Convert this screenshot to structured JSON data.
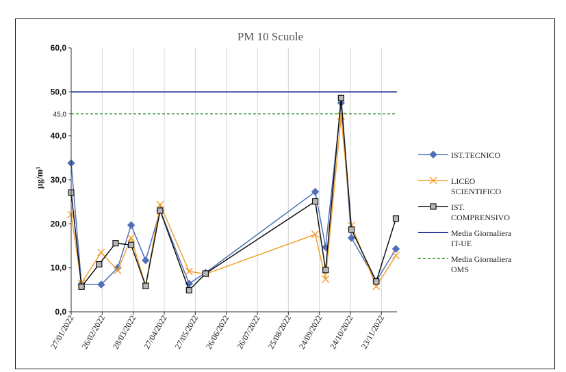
{
  "chart_data": {
    "type": "line",
    "title": "PM 10 Scuole",
    "ylabel": "µg/m³",
    "ylim": [
      0,
      60
    ],
    "yticks": [
      "0,0",
      "10,0",
      "20,0",
      "30,0",
      "40,0",
      "45,0",
      "50,0",
      "60,0"
    ],
    "xlim": [
      "2022-01-27",
      "2022-12-08"
    ],
    "xticks": [
      "27/01/2022",
      "26/02/2022",
      "28/03/2022",
      "27/04/2022",
      "27/05/2022",
      "26/06/2022",
      "26/07/2022",
      "25/08/2022",
      "24/09/2022",
      "24/10/2022",
      "23/11/2022"
    ],
    "grid": "vertical",
    "legend_position": "right",
    "series": [
      {
        "name": "IST.TECNICO",
        "color": "#4f6fb8",
        "marker": "diamond",
        "points": [
          [
            "2022-01-27",
            33.8
          ],
          [
            "2022-02-06",
            6.3
          ],
          [
            "2022-02-25",
            6.2
          ],
          [
            "2022-03-13",
            10.0
          ],
          [
            "2022-03-26",
            19.7
          ],
          [
            "2022-04-09",
            11.7
          ],
          [
            "2022-04-23",
            23.1
          ],
          [
            "2022-05-21",
            6.4
          ],
          [
            "2022-06-06",
            8.9
          ],
          [
            "2022-09-20",
            27.3
          ],
          [
            "2022-09-30",
            14.7
          ],
          [
            "2022-10-15",
            47.5
          ],
          [
            "2022-10-25",
            16.8
          ],
          [
            "2022-11-18",
            7.0
          ],
          [
            "2022-12-07",
            14.3
          ]
        ]
      },
      {
        "name": "LICEO SCIENTIFICO",
        "color": "#f0a030",
        "marker": "x",
        "points": [
          [
            "2022-01-27",
            22.1
          ],
          [
            "2022-02-06",
            6.5
          ],
          [
            "2022-02-25",
            13.5
          ],
          [
            "2022-03-13",
            9.4
          ],
          [
            "2022-03-26",
            16.8
          ],
          [
            "2022-04-09",
            5.9
          ],
          [
            "2022-04-23",
            24.4
          ],
          [
            "2022-05-21",
            9.2
          ],
          [
            "2022-06-06",
            8.6
          ],
          [
            "2022-09-20",
            17.6
          ],
          [
            "2022-09-30",
            7.4
          ],
          [
            "2022-10-15",
            44.5
          ],
          [
            "2022-10-25",
            19.6
          ],
          [
            "2022-11-18",
            5.8
          ],
          [
            "2022-12-07",
            12.8
          ]
        ]
      },
      {
        "name": "IST. COMPRENSIVO",
        "color": "#111111",
        "marker": "square",
        "points": [
          [
            "2022-01-27",
            27.1
          ],
          [
            "2022-02-06",
            5.7
          ],
          [
            "2022-02-23",
            10.8
          ],
          [
            "2022-03-11",
            15.6
          ],
          [
            "2022-03-26",
            15.2
          ],
          [
            "2022-04-09",
            5.9
          ],
          [
            "2022-04-23",
            23.0
          ],
          [
            "2022-05-21",
            4.9
          ],
          [
            "2022-06-06",
            8.7
          ],
          [
            "2022-09-20",
            25.1
          ],
          [
            "2022-09-30",
            9.5
          ],
          [
            "2022-10-15",
            48.6
          ],
          [
            "2022-10-25",
            18.7
          ],
          [
            "2022-11-18",
            6.9
          ],
          [
            "2022-12-07",
            21.2
          ]
        ]
      }
    ],
    "reference_lines": [
      {
        "name": "Media Giornaliera IT-UE",
        "value": 50,
        "color": "#2c3e9a",
        "style": "solid"
      },
      {
        "name": "Media Giornaliera OMS",
        "value": 45,
        "color": "#1f8a1f",
        "style": "dashed"
      }
    ],
    "legend": [
      {
        "label_lines": [
          "IST.TECNICO"
        ],
        "series": 0
      },
      {
        "label_lines": [
          "LICEO",
          "SCIENTIFICO"
        ],
        "series": 1
      },
      {
        "label_lines": [
          "IST.",
          "COMPRENSIVO"
        ],
        "series": 2
      },
      {
        "label_lines": [
          "Media Giornaliera",
          "IT-UE"
        ],
        "ref": 0
      },
      {
        "label_lines": [
          "Media Giornaliera",
          "OMS"
        ],
        "ref": 1
      }
    ]
  }
}
